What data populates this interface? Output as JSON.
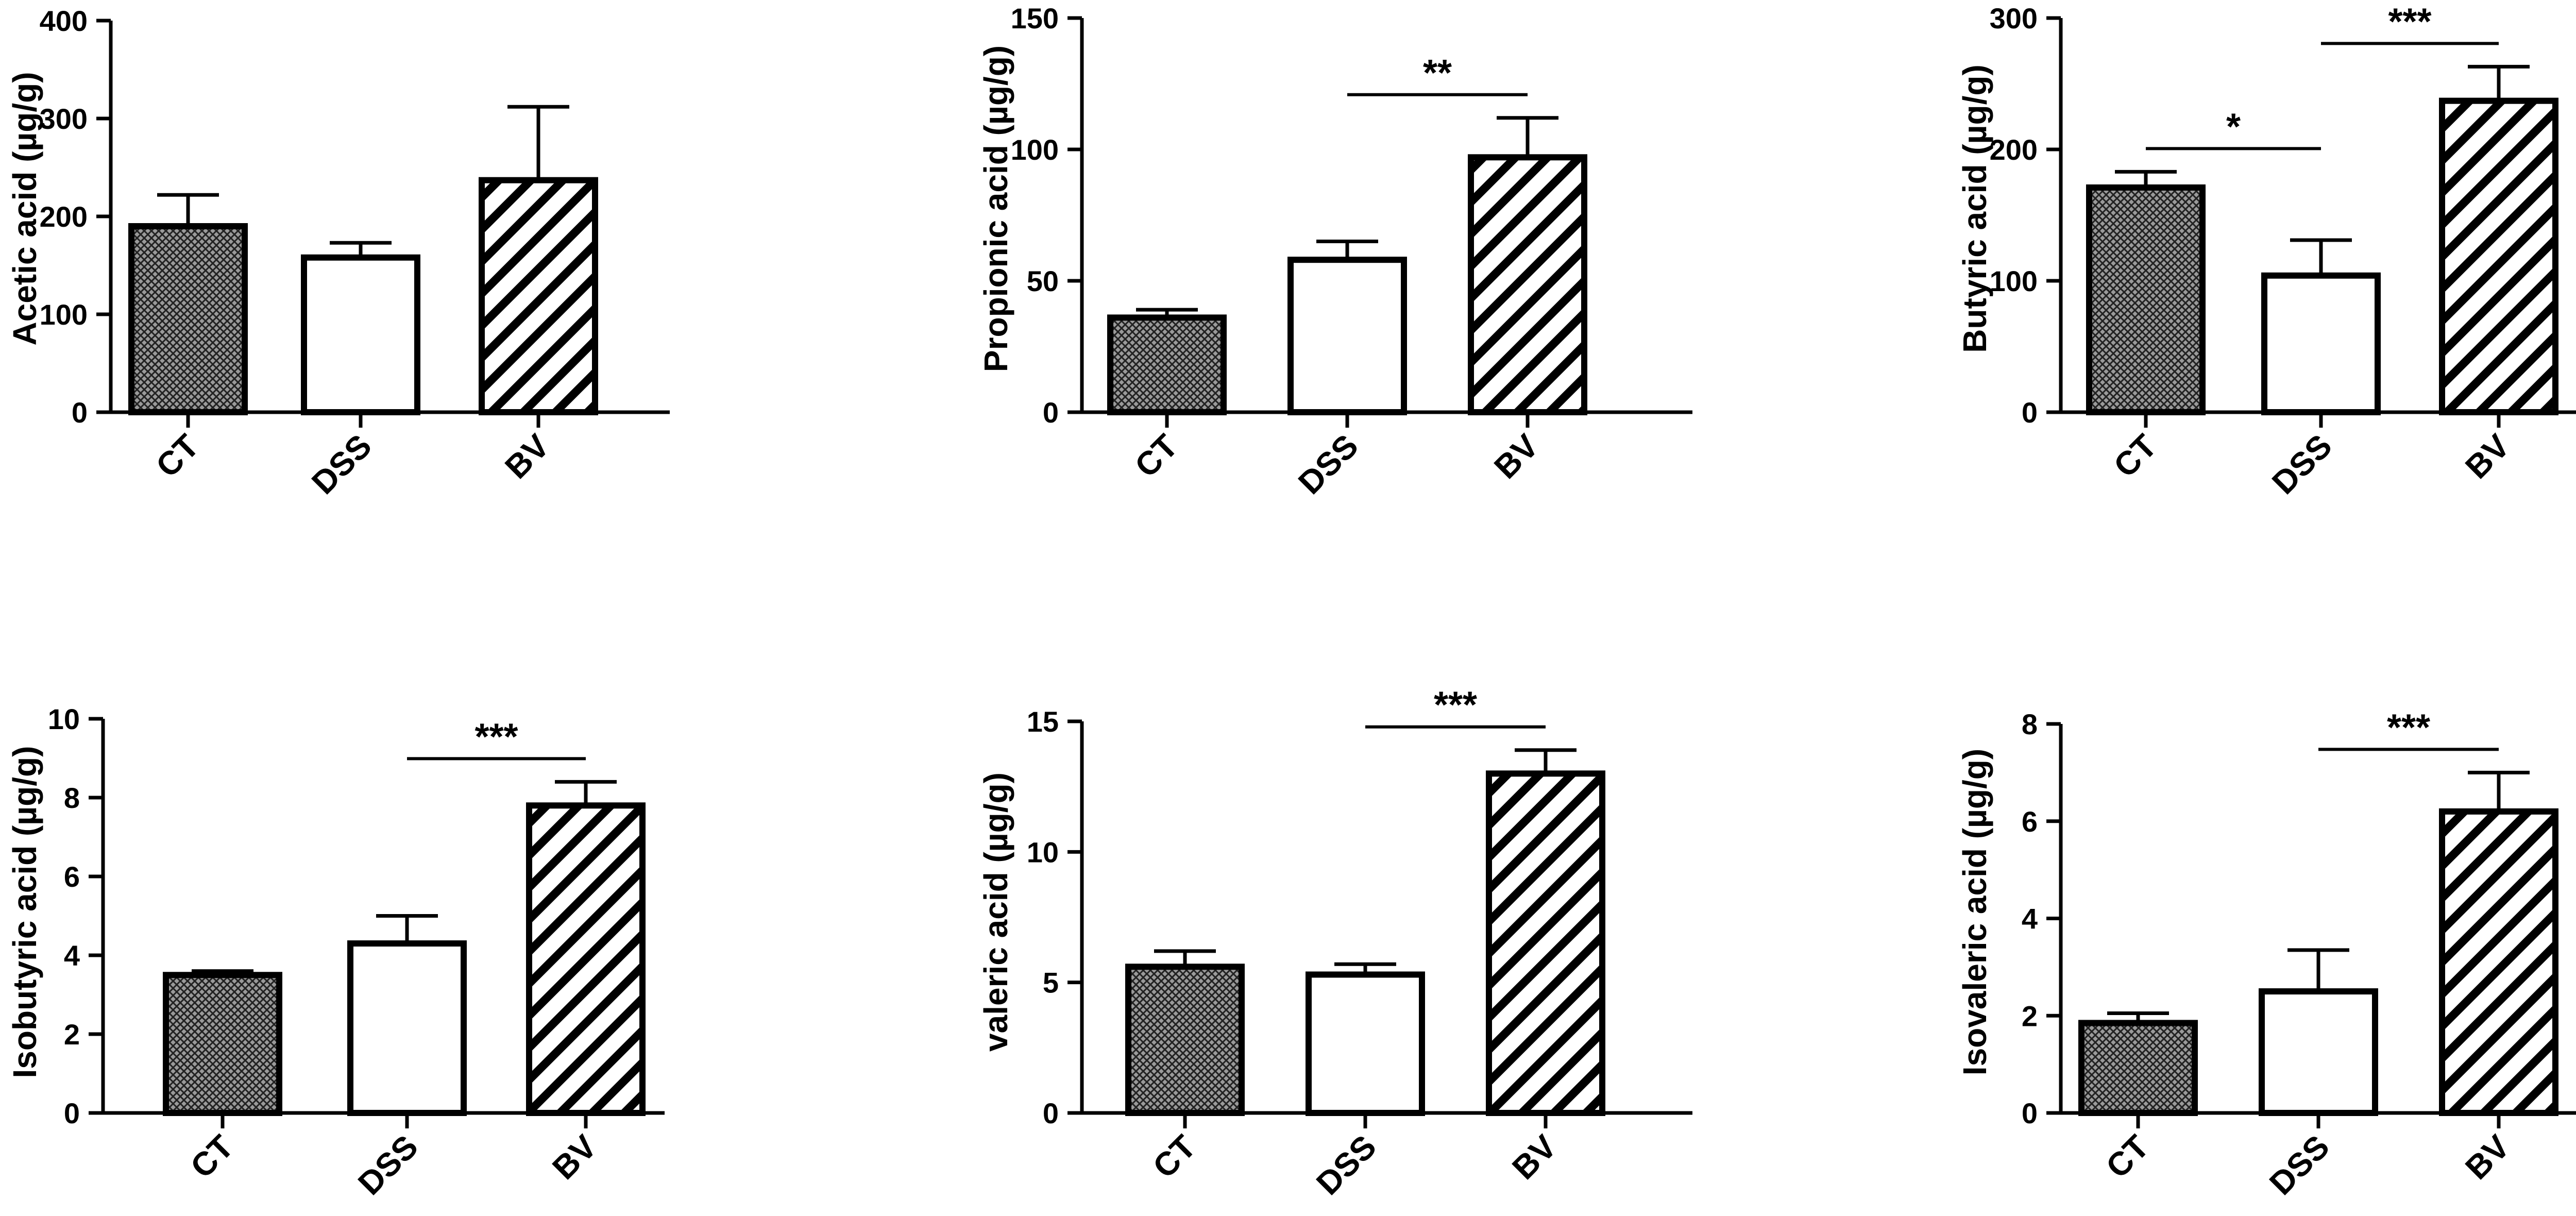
{
  "chart_data": [
    {
      "type": "bar",
      "ylabel": "Acetic acid (µg/g)",
      "categories": [
        "CT",
        "DSS",
        "BV"
      ],
      "values": [
        190,
        158,
        237
      ],
      "errors": [
        32,
        15,
        75
      ],
      "ylim": [
        0,
        400
      ],
      "yticks": [
        "0",
        "100",
        "200",
        "300",
        "400"
      ],
      "significance": []
    },
    {
      "type": "bar",
      "ylabel": "Propionic acid (µg/g)",
      "categories": [
        "CT",
        "DSS",
        "BV"
      ],
      "values": [
        36,
        58,
        97
      ],
      "errors": [
        3,
        7,
        15
      ],
      "ylim": [
        0,
        150
      ],
      "yticks": [
        "0",
        "50",
        "100",
        "150"
      ],
      "significance": [
        {
          "from": "DSS",
          "to": "BV",
          "label": "**"
        }
      ]
    },
    {
      "type": "bar",
      "ylabel": "Butyric acid (µg/g)",
      "categories": [
        "CT",
        "DSS",
        "BV"
      ],
      "values": [
        171,
        104,
        237
      ],
      "errors": [
        12,
        27,
        26
      ],
      "ylim": [
        0,
        300
      ],
      "yticks": [
        "0",
        "100",
        "200",
        "300"
      ],
      "significance": [
        {
          "from": "CT",
          "to": "DSS",
          "label": "*"
        },
        {
          "from": "DSS",
          "to": "BV",
          "label": "***"
        }
      ]
    },
    {
      "type": "bar",
      "ylabel": "Isobutyric acid (µg/g)",
      "categories": [
        "CT",
        "DSS",
        "BV"
      ],
      "values": [
        3.5,
        4.3,
        7.8
      ],
      "errors": [
        0.1,
        0.7,
        0.6
      ],
      "ylim": [
        0,
        10
      ],
      "yticks": [
        "0",
        "2",
        "4",
        "6",
        "8",
        "10"
      ],
      "significance": [
        {
          "from": "DSS",
          "to": "BV",
          "label": "***"
        }
      ]
    },
    {
      "type": "bar",
      "ylabel": "valeric acid (µg/g)",
      "categories": [
        "CT",
        "DSS",
        "BV"
      ],
      "values": [
        5.6,
        5.3,
        13.0
      ],
      "errors": [
        0.6,
        0.4,
        0.9
      ],
      "ylim": [
        0,
        15
      ],
      "yticks": [
        "0",
        "5",
        "10",
        "15"
      ],
      "significance": [
        {
          "from": "DSS",
          "to": "BV",
          "label": "***"
        }
      ]
    },
    {
      "type": "bar",
      "ylabel": "Isovaleric acid (µg/g)",
      "categories": [
        "CT",
        "DSS",
        "BV"
      ],
      "values": [
        1.85,
        2.5,
        6.2
      ],
      "errors": [
        0.2,
        0.85,
        0.8
      ],
      "ylim": [
        0,
        8
      ],
      "yticks": [
        "0",
        "2",
        "4",
        "6",
        "8"
      ],
      "significance": [
        {
          "from": "DSS",
          "to": "BV",
          "label": "***"
        }
      ]
    }
  ],
  "colors": {
    "axis": "#000000",
    "bar_outline": "#000000",
    "CT_fill": "crosshatch-dark-grey",
    "DSS_fill": "#ffffff",
    "BV_fill": "diagonal-stripes"
  }
}
